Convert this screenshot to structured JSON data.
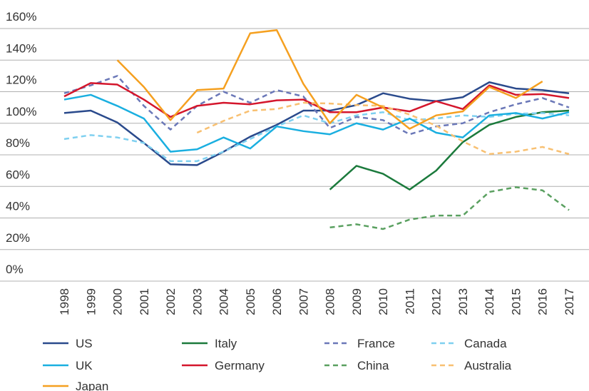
{
  "chart_data": {
    "type": "line",
    "categories": [
      "1998",
      "1999",
      "2000",
      "2001",
      "2002",
      "2003",
      "2004",
      "2005",
      "2006",
      "2007",
      "2008",
      "2009",
      "2010",
      "2011",
      "2012",
      "2013",
      "2014",
      "2015",
      "2016",
      "2017"
    ],
    "ylim": [
      0,
      160
    ],
    "yticks": [
      {
        "value": 0,
        "label": "0%"
      },
      {
        "value": 20,
        "label": "20%"
      },
      {
        "value": 40,
        "label": "40%"
      },
      {
        "value": 60,
        "label": "60%"
      },
      {
        "value": 80,
        "label": "80%"
      },
      {
        "value": 100,
        "label": "100%"
      },
      {
        "value": 120,
        "label": "120%"
      },
      {
        "value": 140,
        "label": "140%"
      },
      {
        "value": 160,
        "label": "160%"
      }
    ],
    "grid": true,
    "legend": "bottom",
    "series": [
      {
        "name": "US",
        "color": "#2a4a8c",
        "style": "solid",
        "values": [
          106.5,
          108,
          100.5,
          87.5,
          74,
          73.5,
          82,
          91.5,
          99,
          108,
          108,
          111.5,
          119,
          115.5,
          114,
          116.5,
          126,
          122,
          121,
          119
        ]
      },
      {
        "name": "Italy",
        "color": "#1b7a3c",
        "style": "solid",
        "values": [
          null,
          null,
          null,
          null,
          null,
          null,
          null,
          null,
          null,
          null,
          58,
          73,
          68,
          58,
          70,
          88,
          99,
          104,
          107,
          108
        ]
      },
      {
        "name": "France",
        "color": "#6b78b8",
        "style": "dashed",
        "values": [
          119,
          124,
          130,
          111,
          96,
          111,
          120,
          113,
          121,
          117,
          97,
          104,
          102,
          93,
          98,
          100,
          107,
          112,
          116,
          110
        ]
      },
      {
        "name": "Canada",
        "color": "#7fd0f0",
        "style": "dashed",
        "values": [
          90,
          92.5,
          91,
          87.5,
          76,
          76,
          82,
          90,
          98,
          105,
          100,
          105,
          107,
          102,
          103,
          105,
          104,
          106,
          106.5,
          105
        ]
      },
      {
        "name": "UK",
        "color": "#1aafe0",
        "style": "solid",
        "values": [
          115,
          118,
          111,
          103,
          82,
          83.5,
          91,
          84,
          98,
          95,
          93,
          100,
          96,
          103,
          94,
          91,
          105,
          106.5,
          103,
          107
        ]
      },
      {
        "name": "Germany",
        "color": "#d4162c",
        "style": "solid",
        "values": [
          117,
          125.5,
          124.5,
          115,
          104,
          111,
          113,
          112,
          114.5,
          115,
          107,
          107,
          110,
          107.5,
          114,
          109,
          124,
          118,
          118.5,
          116
        ]
      },
      {
        "name": "China",
        "color": "#5aa060",
        "style": "dashed",
        "values": [
          null,
          null,
          null,
          null,
          null,
          null,
          null,
          null,
          null,
          null,
          34,
          36,
          33,
          39,
          41.5,
          41.5,
          56.5,
          59.5,
          57.5,
          45
        ]
      },
      {
        "name": "Australia",
        "color": "#f8c071",
        "style": "dashed",
        "values": [
          null,
          null,
          null,
          null,
          null,
          94,
          101.5,
          108,
          109,
          113,
          112.5,
          111.5,
          111,
          105.5,
          98.5,
          88.5,
          80.5,
          82,
          85,
          80.5
        ]
      },
      {
        "name": "Japan",
        "color": "#f5a020",
        "style": "solid",
        "values": [
          null,
          null,
          140,
          123,
          102,
          121,
          122,
          157,
          159,
          125,
          100,
          118,
          110,
          96.5,
          105,
          107.5,
          123,
          116,
          126.5,
          null
        ]
      }
    ]
  }
}
